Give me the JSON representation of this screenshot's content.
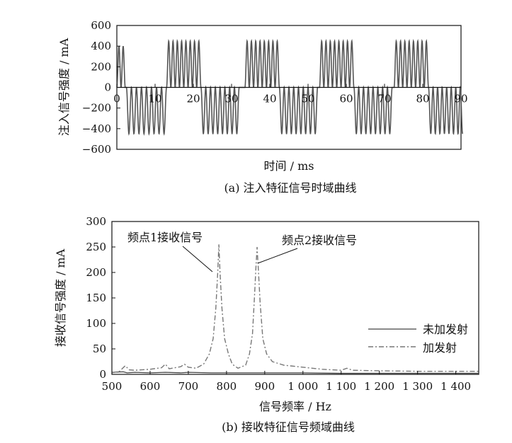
{
  "chart_data": [
    {
      "type": "line",
      "caption": "(a) 注入特征信号时域曲线",
      "xlabel": "时间 / ms",
      "ylabel": "注入信号强度 / mA",
      "xlim": [
        0,
        90
      ],
      "ylim": [
        -600,
        600
      ],
      "x_ticks": [
        "0",
        "10",
        "20",
        "30",
        "40",
        "50",
        "60",
        "70",
        "80",
        "90"
      ],
      "y_ticks": [
        "600",
        "400",
        "200",
        "0",
        "−200",
        "−400",
        "−600"
      ],
      "grid": false,
      "legend": "none",
      "series": [
        {
          "color": "#555555",
          "pattern": "alternating bursts of ~440 Hz-like oscillation, positive bursts 0-450 mA and negative bursts 0 to -450 mA, period ~20 ms",
          "bursts": [
            {
              "start": 0.0,
              "end": 2.2,
              "sign": 1,
              "amp": 400,
              "cycles": 2
            },
            {
              "start": 2.5,
              "end": 13.0,
              "sign": -1,
              "amp": 450,
              "cycles": 8
            },
            {
              "start": 13.0,
              "end": 22.0,
              "sign": 1,
              "amp": 450,
              "cycles": 8
            },
            {
              "start": 22.0,
              "end": 32.0,
              "sign": -1,
              "amp": 450,
              "cycles": 8
            },
            {
              "start": 33.5,
              "end": 42.5,
              "sign": 1,
              "amp": 450,
              "cycles": 8
            },
            {
              "start": 42.5,
              "end": 52.5,
              "sign": -1,
              "amp": 450,
              "cycles": 8
            },
            {
              "start": 53.0,
              "end": 62.0,
              "sign": 1,
              "amp": 450,
              "cycles": 8
            },
            {
              "start": 62.0,
              "end": 72.0,
              "sign": -1,
              "amp": 450,
              "cycles": 8
            },
            {
              "start": 72.5,
              "end": 81.5,
              "sign": 1,
              "amp": 450,
              "cycles": 8
            },
            {
              "start": 81.5,
              "end": 91.0,
              "sign": -1,
              "amp": 450,
              "cycles": 8
            }
          ]
        }
      ]
    },
    {
      "type": "line",
      "caption": "(b) 接收特征信号频域曲线",
      "xlabel": "信号频率 / Hz",
      "ylabel": "接收信号强度 / mA",
      "xlim": [
        500,
        1460
      ],
      "ylim": [
        0,
        300
      ],
      "x_ticks": [
        "500",
        "600",
        "700",
        "800",
        "900",
        "1 000",
        "1 100",
        "1 200",
        "1 300",
        "1 400"
      ],
      "x_tick_values": [
        500,
        600,
        700,
        800,
        900,
        1000,
        1100,
        1200,
        1300,
        1400
      ],
      "y_ticks": [
        "300",
        "250",
        "200",
        "150",
        "100",
        "50",
        "0"
      ],
      "y_tick_values": [
        300,
        250,
        200,
        150,
        100,
        50,
        0
      ],
      "grid": false,
      "legend": "right",
      "annotations": [
        {
          "text": "频点1接收信号",
          "x": 780,
          "y": 255
        },
        {
          "text": "频点2接收信号",
          "x": 880,
          "y": 250
        }
      ],
      "series": [
        {
          "name": "未加发射",
          "color": "#444444",
          "dash": "solid",
          "points": [
            [
              500,
              4
            ],
            [
              530,
              5
            ],
            [
              540,
              3
            ],
            [
              560,
              4
            ],
            [
              600,
              3
            ],
            [
              640,
              4
            ],
            [
              680,
              3
            ],
            [
              700,
              4
            ],
            [
              760,
              3
            ],
            [
              800,
              3
            ],
            [
              860,
              3
            ],
            [
              900,
              3
            ],
            [
              1000,
              3
            ],
            [
              1100,
              2
            ],
            [
              1200,
              2
            ],
            [
              1300,
              2
            ],
            [
              1460,
              2
            ]
          ]
        },
        {
          "name": "加发射",
          "color": "#777777",
          "dash": "dashdot",
          "points": [
            [
              500,
              3
            ],
            [
              520,
              6
            ],
            [
              535,
              17
            ],
            [
              545,
              9
            ],
            [
              560,
              8
            ],
            [
              600,
              10
            ],
            [
              630,
              13
            ],
            [
              640,
              20
            ],
            [
              650,
              11
            ],
            [
              680,
              15
            ],
            [
              690,
              20
            ],
            [
              700,
              14
            ],
            [
              720,
              12
            ],
            [
              740,
              20
            ],
            [
              755,
              40
            ],
            [
              765,
              70
            ],
            [
              772,
              130
            ],
            [
              777,
              200
            ],
            [
              780,
              255
            ],
            [
              783,
              200
            ],
            [
              788,
              130
            ],
            [
              795,
              70
            ],
            [
              805,
              40
            ],
            [
              815,
              20
            ],
            [
              830,
              12
            ],
            [
              850,
              18
            ],
            [
              860,
              40
            ],
            [
              868,
              80
            ],
            [
              873,
              150
            ],
            [
              877,
              210
            ],
            [
              880,
              250
            ],
            [
              883,
              210
            ],
            [
              888,
              140
            ],
            [
              895,
              70
            ],
            [
              905,
              40
            ],
            [
              920,
              25
            ],
            [
              950,
              18
            ],
            [
              1000,
              14
            ],
            [
              1050,
              10
            ],
            [
              1100,
              8
            ],
            [
              1115,
              12
            ],
            [
              1130,
              8
            ],
            [
              1200,
              7
            ],
            [
              1300,
              6
            ],
            [
              1460,
              6
            ]
          ]
        }
      ]
    }
  ]
}
